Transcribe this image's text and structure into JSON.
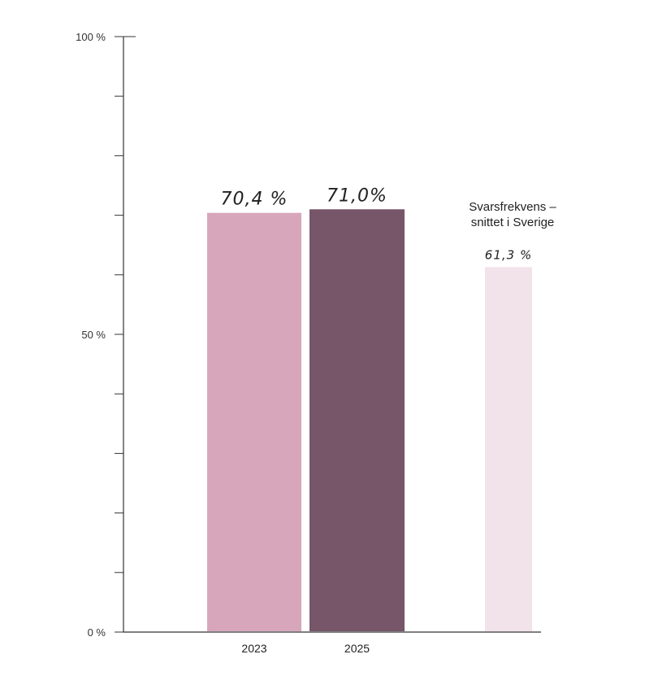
{
  "chart_data": {
    "type": "bar",
    "categories": [
      "2023",
      "2025",
      ""
    ],
    "values": [
      70.4,
      71.0,
      61.3
    ],
    "value_labels": [
      "70,4 %",
      "71,0%",
      "61,3 %"
    ],
    "reference_label_lines": [
      "Svarsfrekvens –",
      "snittet i Sverige"
    ],
    "ylim": [
      0,
      100
    ],
    "ytick_labels": [
      {
        "value": 0,
        "label": "0 %"
      },
      {
        "value": 50,
        "label": "50 %"
      },
      {
        "value": 100,
        "label": "100 %"
      }
    ],
    "minor_tick_step": 10,
    "grid": false,
    "colors": [
      "#d8a6bb",
      "#765668",
      "#f2e2ea"
    ],
    "axis_color": "#333333"
  }
}
